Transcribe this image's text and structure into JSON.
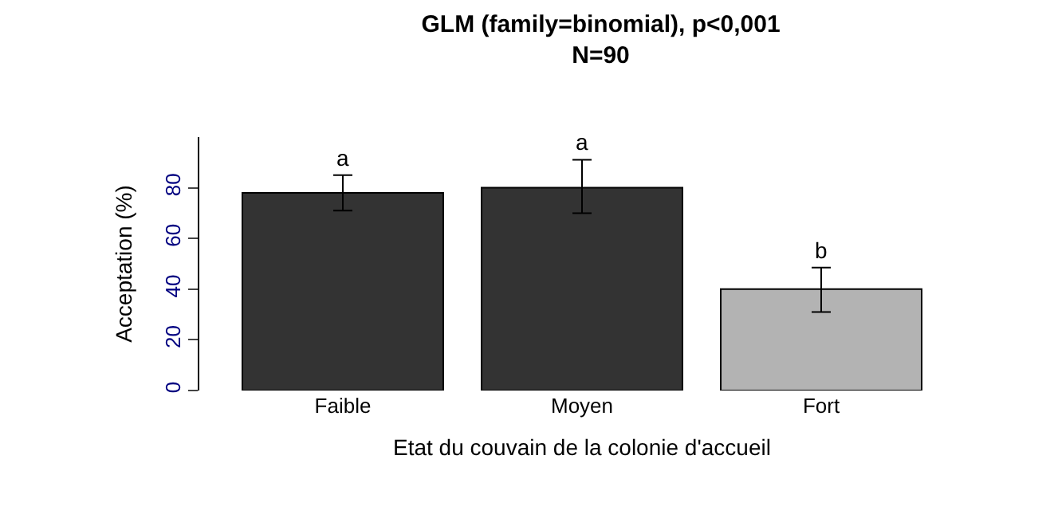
{
  "chart_data": {
    "type": "bar",
    "title": "GLM (family=binomial), p<0,001\nN=90",
    "xlabel": "Etat du couvain de la colonie d'accueil",
    "ylabel": "Acceptation (%)",
    "categories": [
      "Faible",
      "Moyen",
      "Fort"
    ],
    "values": [
      78,
      80,
      40
    ],
    "colors": [
      "#333333",
      "#333333",
      "#b3b3b3"
    ],
    "errors": [
      [
        71,
        85
      ],
      [
        70,
        91
      ],
      [
        31,
        48.5
      ]
    ],
    "annotations": [
      "a",
      "a",
      "b"
    ],
    "ylim": [
      0,
      100
    ],
    "yticks": [
      0,
      20,
      40,
      60,
      80
    ],
    "grid": false
  }
}
